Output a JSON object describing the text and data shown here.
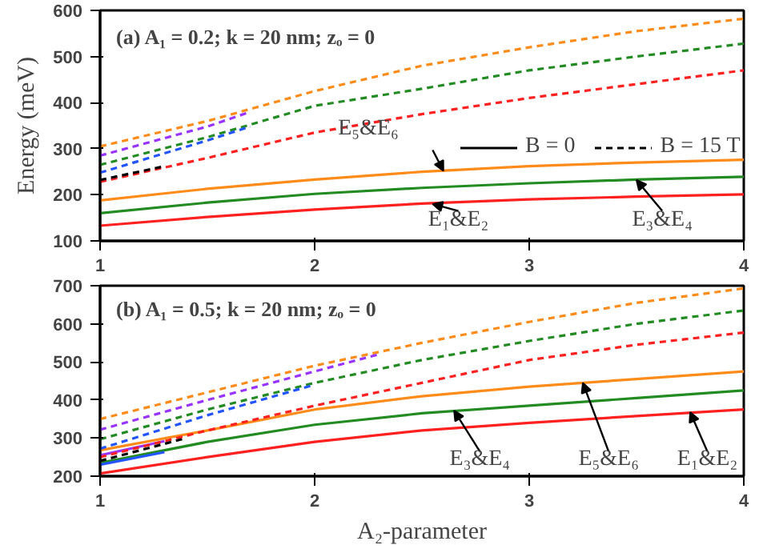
{
  "chart_data": [
    {
      "type": "line",
      "title": "(a)  A₁ = 0.2; k = 20 nm; zₒ = 0",
      "ylabel": "Energy (meV)",
      "xlim": [
        1,
        4
      ],
      "xticks": [
        1,
        2,
        3,
        4
      ],
      "ylim": [
        100,
        600
      ],
      "yticks": [
        100,
        200,
        300,
        400,
        500,
        600
      ],
      "grid": false,
      "annotations": [
        "B = 0",
        "B = 15 T",
        {
          "text": "E₅&E₆",
          "x": 2.6,
          "y": 252
        },
        {
          "text": "E₁&E₂",
          "x": 2.55,
          "y": 180
        },
        {
          "text": "E₃&E₄",
          "x": 3.5,
          "y": 232
        }
      ],
      "series": [
        {
          "color": "#ff8c1a",
          "line_style": "solid",
          "x": [
            1,
            1.5,
            2,
            2.5,
            3,
            3.5,
            4
          ],
          "values": [
            188,
            213,
            233,
            250,
            262,
            270,
            276
          ]
        },
        {
          "color": "#228b22",
          "line_style": "solid",
          "x": [
            1,
            1.5,
            2,
            2.5,
            3,
            3.5,
            4
          ],
          "values": [
            160,
            183,
            202,
            215,
            225,
            233,
            239
          ]
        },
        {
          "color": "#ff2020",
          "line_style": "solid",
          "x": [
            1,
            1.5,
            2,
            2.5,
            3,
            3.5,
            4
          ],
          "values": [
            133,
            152,
            168,
            181,
            190,
            196,
            201
          ]
        },
        {
          "color": "#ff8c1a",
          "line_style": "dashed",
          "x": [
            1,
            1.5,
            2,
            2.5,
            3,
            3.5,
            4
          ],
          "values": [
            305,
            360,
            425,
            480,
            520,
            555,
            582
          ]
        },
        {
          "color": "#9933ff",
          "line_style": "dashed",
          "x": [
            1,
            1.5,
            1.7
          ],
          "values": [
            285,
            348,
            380
          ]
        },
        {
          "color": "#228b22",
          "line_style": "dashed",
          "x": [
            1,
            1.5,
            2,
            2.5,
            3,
            3.5,
            4
          ],
          "values": [
            265,
            325,
            393,
            430,
            470,
            500,
            528
          ]
        },
        {
          "color": "#2255ff",
          "line_style": "dashed",
          "x": [
            1,
            1.5,
            1.7
          ],
          "values": [
            248,
            318,
            348
          ]
        },
        {
          "color": "#ff2020",
          "line_style": "dashed",
          "x": [
            1,
            1.5,
            2,
            2.5,
            3,
            3.5,
            4
          ],
          "values": [
            228,
            280,
            335,
            375,
            410,
            440,
            470
          ]
        },
        {
          "color": "#000000",
          "line_style": "dashed",
          "x": [
            1,
            1.3
          ],
          "values": [
            232,
            262
          ]
        }
      ]
    },
    {
      "type": "line",
      "title": "(b)  A₁ = 0.5; k = 20 nm; zₒ = 0",
      "xlabel": "A₂-parameter",
      "xlim": [
        1,
        4
      ],
      "xticks": [
        1,
        2,
        3,
        4
      ],
      "ylim": [
        200,
        700
      ],
      "yticks": [
        200,
        300,
        400,
        500,
        600,
        700
      ],
      "grid": false,
      "annotations": [
        {
          "text": "E₃&E₄",
          "x": 2.65,
          "y": 372
        },
        {
          "text": "E₅&E₆",
          "x": 3.25,
          "y": 445
        },
        {
          "text": "E₁&E₂",
          "x": 3.75,
          "y": 368
        }
      ],
      "series": [
        {
          "color": "#ff8c1a",
          "line_style": "solid",
          "x": [
            1,
            1.5,
            2,
            2.5,
            3,
            3.5,
            4
          ],
          "values": [
            268,
            320,
            375,
            410,
            435,
            455,
            475
          ]
        },
        {
          "color": "#9933ff",
          "line_style": "solid",
          "x": [
            1,
            1.3
          ],
          "values": [
            255,
            292
          ]
        },
        {
          "color": "#228b22",
          "line_style": "solid",
          "x": [
            1,
            1.5,
            2,
            2.5,
            3,
            3.5,
            4
          ],
          "values": [
            235,
            290,
            335,
            365,
            385,
            405,
            425
          ]
        },
        {
          "color": "#2255ff",
          "line_style": "solid",
          "x": [
            1,
            1.3
          ],
          "values": [
            230,
            263
          ]
        },
        {
          "color": "#ff2020",
          "line_style": "solid",
          "x": [
            1,
            1.5,
            2,
            2.5,
            3,
            3.5,
            4
          ],
          "values": [
            207,
            250,
            290,
            320,
            340,
            358,
            375
          ]
        },
        {
          "color": "#ff8c1a",
          "line_style": "dashed",
          "x": [
            1,
            1.5,
            2,
            2.5,
            3,
            3.5,
            4
          ],
          "values": [
            350,
            420,
            490,
            550,
            605,
            655,
            693
          ]
        },
        {
          "color": "#9933ff",
          "line_style": "dashed",
          "x": [
            1,
            1.5,
            2,
            2.3
          ],
          "values": [
            322,
            400,
            475,
            520
          ]
        },
        {
          "color": "#228b22",
          "line_style": "dashed",
          "x": [
            1,
            1.5,
            2,
            2.5,
            3,
            3.5,
            4
          ],
          "values": [
            297,
            375,
            445,
            505,
            555,
            600,
            635
          ]
        },
        {
          "color": "#2255ff",
          "line_style": "dashed",
          "x": [
            1,
            1.5,
            2
          ],
          "values": [
            272,
            360,
            440
          ]
        },
        {
          "color": "#ff2020",
          "line_style": "dashed",
          "x": [
            1,
            1.5,
            2,
            2.5,
            3,
            3.5,
            4
          ],
          "values": [
            250,
            320,
            385,
            445,
            505,
            545,
            577
          ]
        },
        {
          "color": "#000000",
          "line_style": "dashed",
          "x": [
            1,
            1.4
          ],
          "values": [
            240,
            300
          ]
        }
      ]
    }
  ]
}
